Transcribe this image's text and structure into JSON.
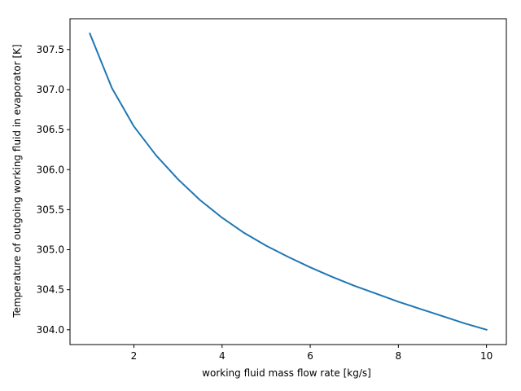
{
  "chart_data": {
    "type": "line",
    "title": "",
    "xlabel": "working fluid mass flow rate [kg/s]",
    "ylabel": "Temperature of outgoing working fluid in evaporator [K]",
    "xlim": [
      0.55,
      10.45
    ],
    "ylim": [
      303.815,
      307.885
    ],
    "x_ticks": [
      2,
      4,
      6,
      8,
      10
    ],
    "x_tick_labels": [
      "2",
      "4",
      "6",
      "8",
      "10"
    ],
    "y_ticks": [
      304.0,
      304.5,
      305.0,
      305.5,
      306.0,
      306.5,
      307.0,
      307.5
    ],
    "y_tick_labels": [
      "304.0",
      "304.5",
      "305.0",
      "305.5",
      "306.0",
      "306.5",
      "307.0",
      "307.5"
    ],
    "grid": false,
    "legend": "none",
    "series": [
      {
        "color": "#1f77b4",
        "x": [
          1.0,
          1.5,
          2.0,
          2.5,
          3.0,
          3.5,
          4.0,
          4.5,
          5.0,
          5.5,
          6.0,
          6.5,
          7.0,
          7.5,
          8.0,
          8.5,
          9.0,
          9.5,
          10.0
        ],
        "y": [
          307.7,
          307.02,
          306.54,
          306.18,
          305.88,
          305.62,
          305.4,
          305.21,
          305.05,
          304.91,
          304.78,
          304.66,
          304.55,
          304.45,
          304.35,
          304.26,
          304.17,
          304.08,
          304.0
        ]
      }
    ]
  }
}
